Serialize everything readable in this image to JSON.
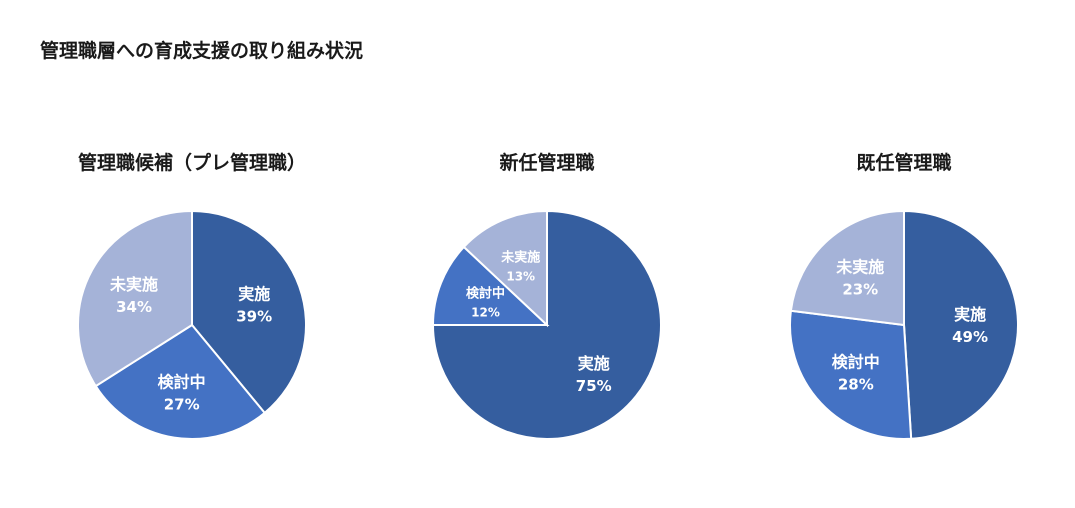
{
  "page": {
    "title": "管理職層への育成支援の取り組み状況"
  },
  "chart_data": [
    {
      "type": "pie",
      "title": "管理職候補（プレ管理職）",
      "slices": [
        {
          "label": "実施",
          "value": 39,
          "display": "39%",
          "color": "#355E9F"
        },
        {
          "label": "検討中",
          "value": 27,
          "display": "27%",
          "color": "#4472C4"
        },
        {
          "label": "未実施",
          "value": 34,
          "display": "34%",
          "color": "#A5B3D8"
        }
      ]
    },
    {
      "type": "pie",
      "title": "新任管理職",
      "slices": [
        {
          "label": "実施",
          "value": 75,
          "display": "75%",
          "color": "#355E9F"
        },
        {
          "label": "検討中",
          "value": 12,
          "display": "12%",
          "color": "#4472C4"
        },
        {
          "label": "未実施",
          "value": 13,
          "display": "13%",
          "color": "#A5B3D8"
        }
      ]
    },
    {
      "type": "pie",
      "title": "既任管理職",
      "slices": [
        {
          "label": "実施",
          "value": 49,
          "display": "49%",
          "color": "#355E9F"
        },
        {
          "label": "検討中",
          "value": 28,
          "display": "28%",
          "color": "#4472C4"
        },
        {
          "label": "未実施",
          "value": 23,
          "display": "23%",
          "color": "#A5B3D8"
        }
      ]
    }
  ]
}
